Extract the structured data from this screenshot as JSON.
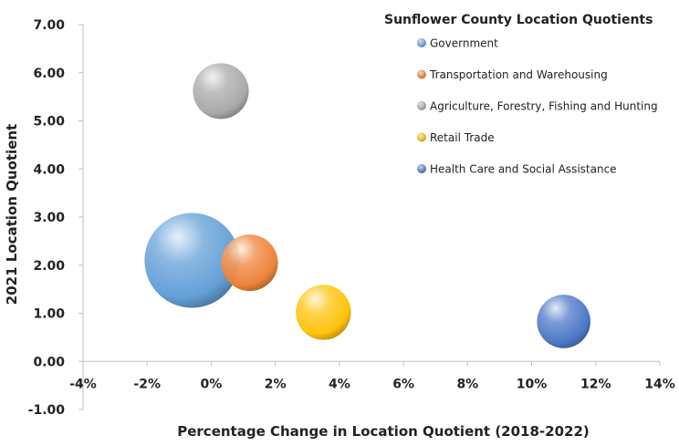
{
  "chart_data": {
    "type": "scatter",
    "subtype": "bubble",
    "title": "Sunflower County Location Quotients",
    "xlabel": "Percentage Change in Location Quotient (2018-2022)",
    "ylabel": "2021 Location Quotient",
    "xlim": [
      -4,
      14
    ],
    "ylim": [
      -1,
      7
    ],
    "x_ticks": [
      "-4%",
      "-2%",
      "0%",
      "2%",
      "4%",
      "6%",
      "8%",
      "10%",
      "12%",
      "14%"
    ],
    "y_ticks": [
      "-1.00",
      "0.00",
      "1.00",
      "2.00",
      "3.00",
      "4.00",
      "5.00",
      "6.00",
      "7.00"
    ],
    "grid": false,
    "legend_position": "top-right",
    "series": [
      {
        "name": "Government",
        "x": -0.6,
        "y": 2.1,
        "size": 5.2,
        "color": "#5b9bd5"
      },
      {
        "name": "Transportation and Warehousing",
        "x": 1.2,
        "y": 2.05,
        "size": 1.85,
        "color": "#ed7d31"
      },
      {
        "name": "Agriculture, Forestry, Fishing and Hunting",
        "x": 0.3,
        "y": 5.62,
        "size": 1.8,
        "color": "#a5a5a5"
      },
      {
        "name": "Retail Trade",
        "x": 3.5,
        "y": 1.02,
        "size": 1.75,
        "color": "#ffc000"
      },
      {
        "name": "Health Care and Social Assistance",
        "x": 11.0,
        "y": 0.83,
        "size": 1.65,
        "color": "#4472c4"
      }
    ]
  }
}
